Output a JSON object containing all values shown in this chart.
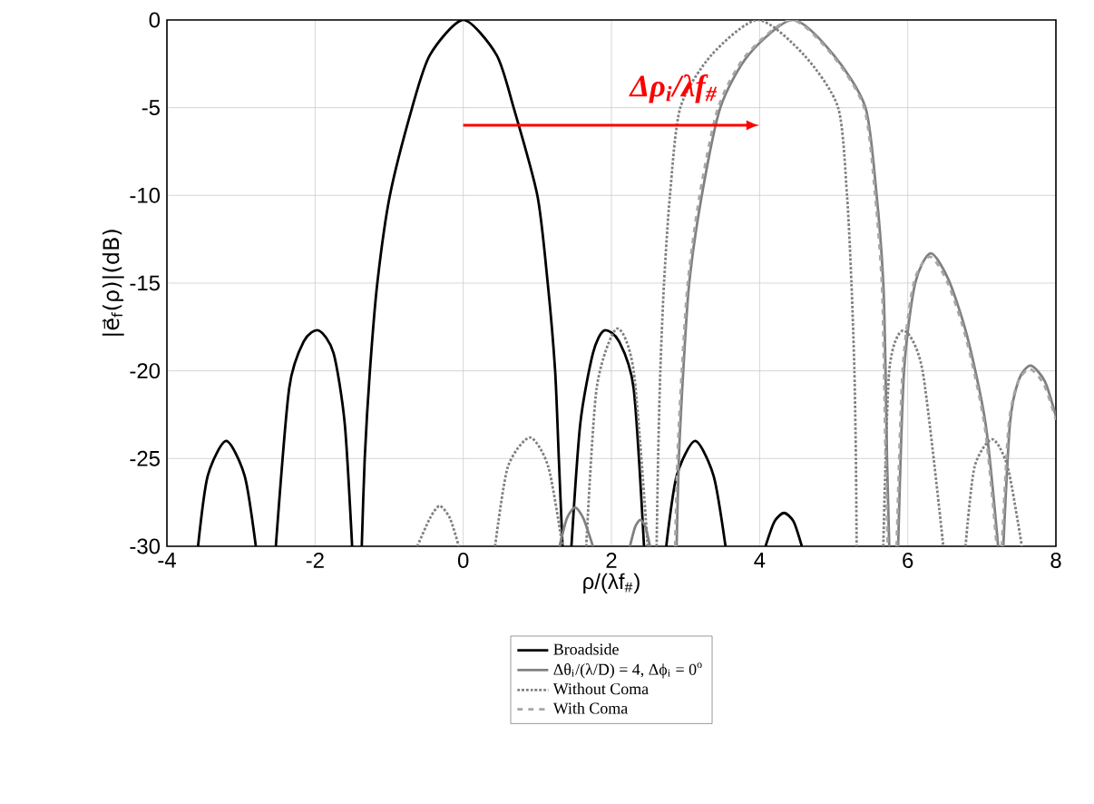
{
  "chart_data": {
    "type": "line",
    "xlabel": "ρ/(λf$_{#}$)",
    "ylabel": "|e⃗$_{f}$(ρ)|(dB)",
    "xlim": [
      -4,
      8
    ],
    "ylim": [
      -30,
      0
    ],
    "xticks": [
      -4,
      -2,
      0,
      2,
      4,
      6,
      8
    ],
    "yticks": [
      -30,
      -25,
      -20,
      -15,
      -10,
      -5,
      0
    ],
    "grid": true,
    "legend": "bottom",
    "marker": "none",
    "annotations": [
      "Δρ$_{i}$/λf$_{#}$"
    ],
    "series": [
      {
        "name": "Broadside",
        "color": "#000000",
        "line_style": "solid",
        "x": [
          -3.58,
          -3.45,
          -3.2,
          -2.95,
          -2.8,
          -2.65,
          -2.53,
          -2.35,
          -2.15,
          -1.95,
          -1.75,
          -1.6,
          -1.5,
          -1.43,
          -1.37,
          -1.33,
          -1.26,
          -1.16,
          -0.99,
          -0.69,
          -0.45,
          0,
          0.45,
          0.68,
          1.0,
          1.14,
          1.24,
          1.29,
          1.34,
          1.4,
          1.46,
          1.58,
          1.75,
          1.9,
          2.1,
          2.3,
          2.44,
          2.6,
          2.74,
          2.88,
          3.13,
          3.38,
          3.54,
          3.8,
          4.08,
          4.2,
          4.33,
          4.46,
          4.57
        ],
        "values": [
          -30,
          -26,
          -24,
          -26,
          -30,
          null,
          -30,
          -21,
          -18.3,
          -17.7,
          -19,
          -23,
          -30,
          null,
          -30,
          -25,
          -20,
          -15,
          -10,
          -5,
          -2,
          0,
          -2,
          -5,
          -10,
          -15,
          -20,
          -25,
          -30,
          null,
          -30,
          -23,
          -19,
          -17.7,
          -18.3,
          -21,
          -30,
          null,
          -30,
          -26,
          -24,
          -26,
          -30,
          null,
          -30,
          -28.6,
          -28.1,
          -28.6,
          -30
        ]
      },
      {
        "name": "Δθ$_{i}$/(λ/D) = 4, Δϕ$_{i}$ = 0$^{o}$",
        "color": "#808080",
        "line_style": "solid",
        "x": [
          1.3,
          1.4,
          1.51,
          1.62,
          1.75,
          2.0,
          2.25,
          2.32,
          2.39,
          2.46,
          2.52,
          2.7,
          2.88,
          2.91,
          2.97,
          3.05,
          3.22,
          3.47,
          3.85,
          4.45,
          5.0,
          5.43,
          5.58,
          5.67,
          5.7,
          5.72,
          5.75,
          5.8,
          5.87,
          5.95,
          6.1,
          6.31,
          6.55,
          6.8,
          7.05,
          7.22,
          7.25,
          7.29,
          7.38,
          7.5,
          7.66,
          7.85,
          8
        ],
        "values": [
          -30,
          -28.4,
          -27.8,
          -28.4,
          -30,
          null,
          -30,
          -28.9,
          -28.5,
          -28.9,
          -30,
          null,
          -30,
          -25,
          -20,
          -15,
          -10,
          -5,
          -2,
          0,
          -2,
          -5,
          -10,
          -15,
          -20,
          -25,
          -30,
          null,
          -30,
          -20,
          -15,
          -13.3,
          -14.8,
          -18,
          -23,
          -30,
          null,
          -30,
          -23,
          -20.5,
          -19.7,
          -20.6,
          -22.6
        ]
      },
      {
        "name": "Without Coma",
        "color": "#808080",
        "line_style": "dotted",
        "x": [
          -0.62,
          -0.45,
          -0.32,
          -0.18,
          -0.06,
          0.2,
          0.43,
          0.6,
          0.9,
          1.15,
          1.34,
          1.5,
          1.66,
          1.8,
          2.07,
          2.3,
          2.49,
          2.55,
          2.61,
          2.63,
          2.66,
          2.71,
          2.79,
          2.93,
          3.35,
          3.98,
          4.6,
          5.06,
          5.18,
          5.24,
          5.28,
          5.3,
          5.31,
          5.5,
          5.67,
          5.75,
          5.94,
          6.2,
          6.48,
          6.6,
          6.78,
          6.9,
          7.14,
          7.35,
          7.54
        ],
        "values": [
          -30,
          -28.4,
          -27.7,
          -28.4,
          -30,
          null,
          -30,
          -25.5,
          -23.8,
          -25.5,
          -30,
          null,
          -30,
          -21,
          -17.6,
          -20,
          -30,
          null,
          -30,
          -25,
          -20,
          -15,
          -10,
          -5,
          -2,
          0,
          -2,
          -5,
          -10,
          -15,
          -20,
          -25,
          -30,
          null,
          -30,
          -20,
          -17.7,
          -20,
          -30,
          null,
          -30,
          -25.5,
          -23.9,
          -25.5,
          -30
        ]
      },
      {
        "name": "With Coma",
        "color": "#a6a6a6",
        "line_style": "dashed",
        "x": [
          2.86,
          2.89,
          2.95,
          3.03,
          3.19,
          3.44,
          3.82,
          4.43,
          4.98,
          5.41,
          5.56,
          5.65,
          5.68,
          5.7,
          5.73,
          5.8,
          5.85,
          5.93,
          6.08,
          6.3,
          6.54,
          6.79,
          7.04,
          7.2,
          7.25,
          7.27,
          7.36,
          7.48,
          7.65,
          7.84,
          8
        ],
        "values": [
          -30,
          -25,
          -20,
          -15,
          -10,
          -5,
          -2,
          0,
          -2,
          -5,
          -10,
          -15,
          -20,
          -25,
          -30,
          null,
          -30,
          -20,
          -15,
          -13.5,
          -15,
          -18.2,
          -23.2,
          -30,
          null,
          -30,
          -23.2,
          -20.7,
          -19.9,
          -20.8,
          -22.8
        ]
      }
    ]
  }
}
